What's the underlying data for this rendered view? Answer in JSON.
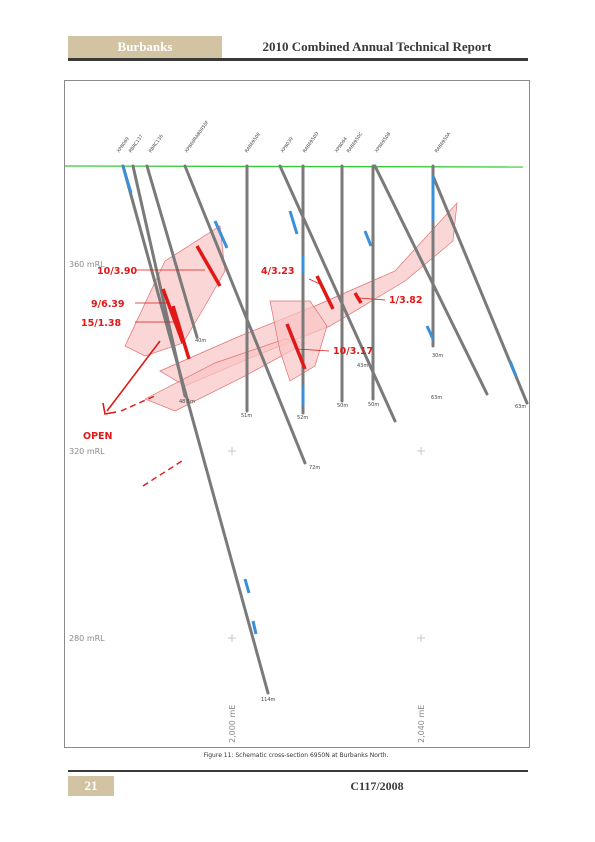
{
  "header": {
    "left_title": "Burbanks",
    "right_title": "2010 Combined Annual Technical Report"
  },
  "figure": {
    "caption": "Figure 11: Schematic cross-section 6950N at Burbanks North.",
    "rl_labels": [
      "360 mRL",
      "320 mRL",
      "280 mRL"
    ],
    "easting_labels": [
      "2,000 mE",
      "2,040 mE"
    ],
    "hole_names": [
      "XPN069",
      "RBRC137",
      "RBRC136",
      "XPN68RAB0950F",
      "RAB6950E",
      "XPN039",
      "RAB6950D",
      "XPN064",
      "RAB6950C",
      "XPN6950B",
      "RAB6950A"
    ],
    "depth_labels": [
      "40m",
      "48.5m",
      "51m",
      "52m",
      "50m",
      "50m",
      "30m",
      "63m",
      "63m",
      "72m",
      "43m",
      "114m"
    ],
    "intercepts": [
      "10/3.90",
      "9/6.39",
      "15/1.38",
      "4/3.23",
      "1/3.82",
      "10/3.17"
    ],
    "open_label": "OPEN",
    "colors": {
      "trace": "#7a7a7a",
      "assay": "#3a8fd8",
      "surface": "#33cc33",
      "zone_fill": "#f9c4c4",
      "zone_line": "#e07070",
      "intercept": "#e01818"
    }
  },
  "footer": {
    "page_number": "21",
    "reference": "C117/2008"
  }
}
